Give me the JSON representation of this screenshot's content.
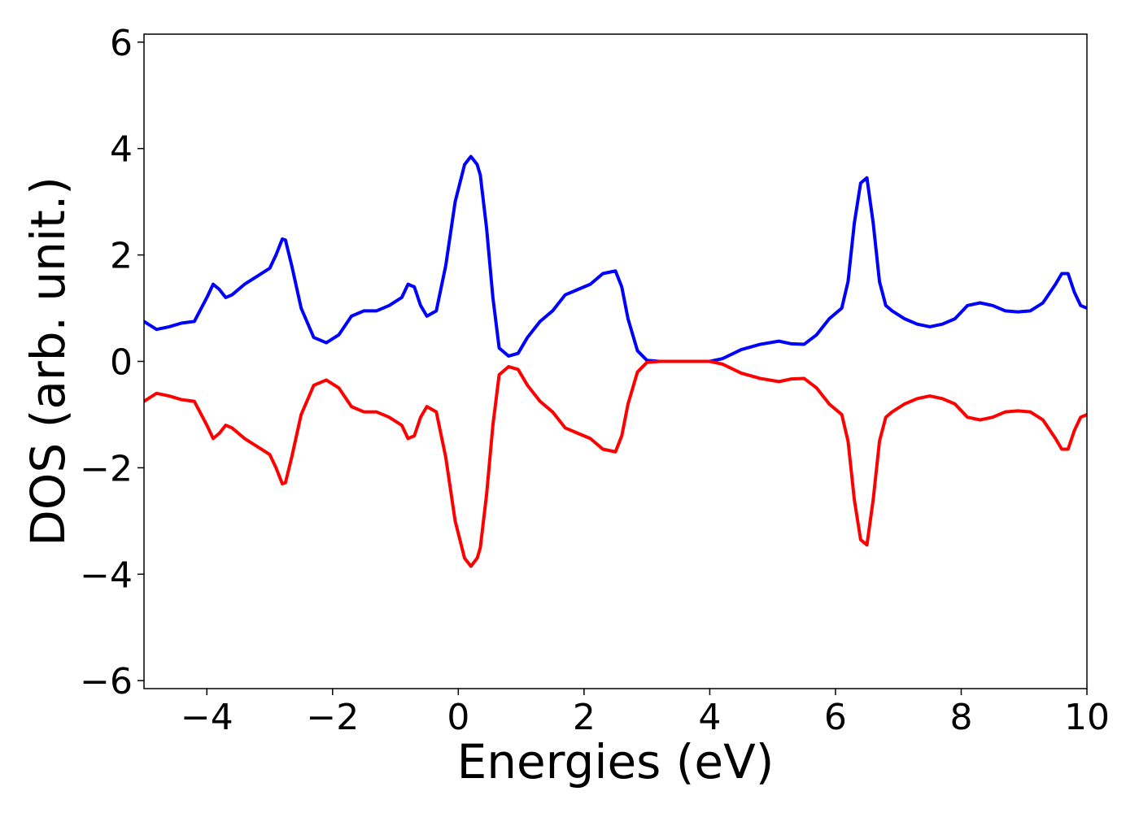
{
  "chart_data": {
    "type": "line",
    "title": "",
    "xlabel": "Energies (eV)",
    "ylabel": "DOS (arb. unit.)",
    "xlim": [
      -5,
      10
    ],
    "ylim": [
      -6.15,
      6.15
    ],
    "grid": false,
    "legend": "none",
    "x_ticks": [
      -4,
      -2,
      0,
      2,
      4,
      6,
      8,
      10
    ],
    "y_ticks": [
      -6,
      -4,
      -2,
      0,
      2,
      4,
      6
    ],
    "x_tick_labels": [
      "−4",
      "−2",
      "0",
      "2",
      "4",
      "6",
      "8",
      "10"
    ],
    "y_tick_labels": [
      "−6",
      "−4",
      "−2",
      "0",
      "2",
      "4",
      "6"
    ],
    "series": [
      {
        "color": "#0000ff",
        "x": [
          -5.0,
          -4.8,
          -4.6,
          -4.4,
          -4.2,
          -4.0,
          -3.9,
          -3.8,
          -3.7,
          -3.6,
          -3.4,
          -3.2,
          -3.0,
          -2.9,
          -2.8,
          -2.75,
          -2.65,
          -2.5,
          -2.3,
          -2.1,
          -1.9,
          -1.7,
          -1.5,
          -1.3,
          -1.1,
          -0.9,
          -0.8,
          -0.7,
          -0.6,
          -0.5,
          -0.35,
          -0.2,
          -0.05,
          0.1,
          0.2,
          0.3,
          0.35,
          0.45,
          0.55,
          0.65,
          0.8,
          0.95,
          1.1,
          1.3,
          1.5,
          1.7,
          1.9,
          2.1,
          2.3,
          2.5,
          2.6,
          2.7,
          2.85,
          3.0,
          3.2,
          3.5,
          4.0,
          4.2,
          4.5,
          4.8,
          5.1,
          5.3,
          5.5,
          5.7,
          5.9,
          6.1,
          6.2,
          6.3,
          6.4,
          6.5,
          6.6,
          6.7,
          6.8,
          6.9,
          7.1,
          7.3,
          7.5,
          7.7,
          7.9,
          8.1,
          8.3,
          8.5,
          8.7,
          8.9,
          9.1,
          9.3,
          9.5,
          9.6,
          9.7,
          9.8,
          9.9,
          10.0
        ],
        "y": [
          0.75,
          0.6,
          0.65,
          0.72,
          0.75,
          1.2,
          1.45,
          1.35,
          1.2,
          1.25,
          1.45,
          1.6,
          1.75,
          2.0,
          2.3,
          2.28,
          1.8,
          1.0,
          0.45,
          0.35,
          0.5,
          0.85,
          0.95,
          0.95,
          1.05,
          1.2,
          1.45,
          1.4,
          1.05,
          0.85,
          0.95,
          1.8,
          3.0,
          3.7,
          3.85,
          3.7,
          3.5,
          2.5,
          1.2,
          0.25,
          0.1,
          0.15,
          0.45,
          0.75,
          0.95,
          1.25,
          1.35,
          1.45,
          1.65,
          1.7,
          1.4,
          0.8,
          0.2,
          0.02,
          0.0,
          0.0,
          0.0,
          0.05,
          0.22,
          0.32,
          0.38,
          0.33,
          0.32,
          0.5,
          0.8,
          1.0,
          1.5,
          2.6,
          3.35,
          3.45,
          2.6,
          1.5,
          1.05,
          0.95,
          0.8,
          0.7,
          0.65,
          0.7,
          0.8,
          1.05,
          1.1,
          1.05,
          0.95,
          0.93,
          0.95,
          1.1,
          1.45,
          1.65,
          1.65,
          1.3,
          1.05,
          1.0
        ]
      },
      {
        "color": "#ff0000",
        "x": [
          -5.0,
          -4.8,
          -4.6,
          -4.4,
          -4.2,
          -4.0,
          -3.9,
          -3.8,
          -3.7,
          -3.6,
          -3.4,
          -3.2,
          -3.0,
          -2.9,
          -2.8,
          -2.75,
          -2.65,
          -2.5,
          -2.3,
          -2.1,
          -1.9,
          -1.7,
          -1.5,
          -1.3,
          -1.1,
          -0.9,
          -0.8,
          -0.7,
          -0.6,
          -0.5,
          -0.35,
          -0.2,
          -0.05,
          0.1,
          0.2,
          0.3,
          0.35,
          0.45,
          0.55,
          0.65,
          0.8,
          0.95,
          1.1,
          1.3,
          1.5,
          1.7,
          1.9,
          2.1,
          2.3,
          2.5,
          2.6,
          2.7,
          2.85,
          3.0,
          3.2,
          3.5,
          4.0,
          4.2,
          4.5,
          4.8,
          5.1,
          5.3,
          5.5,
          5.7,
          5.9,
          6.1,
          6.2,
          6.3,
          6.4,
          6.5,
          6.6,
          6.7,
          6.8,
          6.9,
          7.1,
          7.3,
          7.5,
          7.7,
          7.9,
          8.1,
          8.3,
          8.5,
          8.7,
          8.9,
          9.1,
          9.3,
          9.5,
          9.6,
          9.7,
          9.8,
          9.9,
          10.0
        ],
        "y": [
          -0.75,
          -0.6,
          -0.65,
          -0.72,
          -0.75,
          -1.2,
          -1.45,
          -1.35,
          -1.2,
          -1.25,
          -1.45,
          -1.6,
          -1.75,
          -2.0,
          -2.3,
          -2.28,
          -1.8,
          -1.0,
          -0.45,
          -0.35,
          -0.5,
          -0.85,
          -0.95,
          -0.95,
          -1.05,
          -1.2,
          -1.45,
          -1.4,
          -1.05,
          -0.85,
          -0.95,
          -1.8,
          -3.0,
          -3.7,
          -3.85,
          -3.7,
          -3.5,
          -2.5,
          -1.2,
          -0.25,
          -0.1,
          -0.15,
          -0.45,
          -0.75,
          -0.95,
          -1.25,
          -1.35,
          -1.45,
          -1.65,
          -1.7,
          -1.4,
          -0.8,
          -0.2,
          -0.02,
          0.0,
          0.0,
          0.0,
          -0.05,
          -0.22,
          -0.32,
          -0.38,
          -0.33,
          -0.32,
          -0.5,
          -0.8,
          -1.0,
          -1.5,
          -2.6,
          -3.35,
          -3.45,
          -2.6,
          -1.5,
          -1.05,
          -0.95,
          -0.8,
          -0.7,
          -0.65,
          -0.7,
          -0.8,
          -1.05,
          -1.1,
          -1.05,
          -0.95,
          -0.93,
          -0.95,
          -1.1,
          -1.45,
          -1.65,
          -1.65,
          -1.3,
          -1.05,
          -1.0
        ]
      }
    ]
  }
}
